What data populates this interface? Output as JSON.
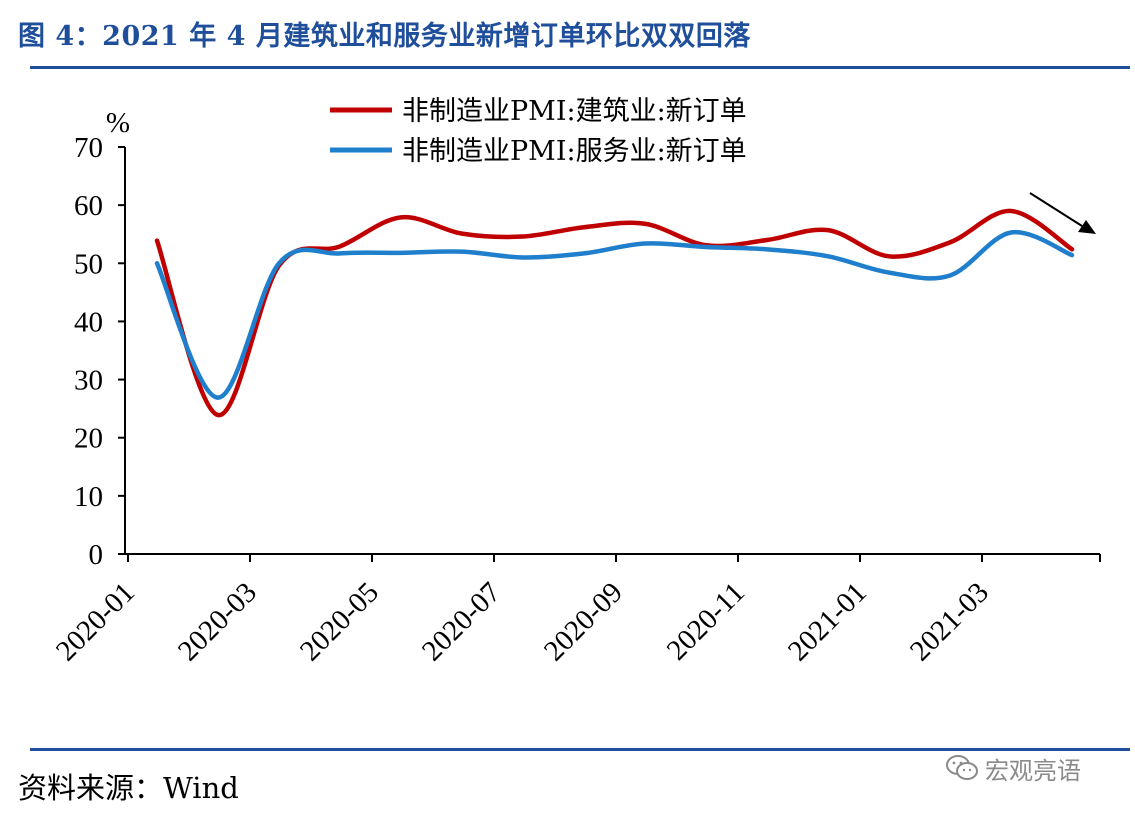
{
  "header": {
    "title": "图 4：2021 年 4 月建筑业和服务业新增订单环比双双回落"
  },
  "footer": {
    "source": "资料来源：Wind",
    "watermark_text": "宏观亮语",
    "watermark_icon": "wechat-icon"
  },
  "colors": {
    "accent": "#1f4e9a",
    "series_construction": "#c00000",
    "series_services": "#1f7fcc"
  },
  "chart_data": {
    "type": "line",
    "ylabel": "%",
    "ylim": [
      0,
      70
    ],
    "yticks": [
      "0",
      "10",
      "20",
      "30",
      "40",
      "50",
      "60",
      "70"
    ],
    "xlabels": [
      "2020-01",
      "2020-03",
      "2020-05",
      "2020-07",
      "2020-09",
      "2020-11",
      "2021-01",
      "2021-03"
    ],
    "x": [
      "2020-01",
      "2020-02",
      "2020-03",
      "2020-04",
      "2020-05",
      "2020-06",
      "2020-07",
      "2020-08",
      "2020-09",
      "2020-10",
      "2020-11",
      "2020-12",
      "2021-01",
      "2021-02",
      "2021-03",
      "2021-04"
    ],
    "series": [
      {
        "name": "非制造业PMI:建筑业:新订单",
        "values": [
          53.9,
          23.9,
          49.6,
          52.9,
          57.9,
          55.1,
          54.6,
          56.2,
          56.8,
          53.1,
          54.0,
          55.7,
          51.2,
          53.6,
          59.0,
          52.4
        ]
      },
      {
        "name": "非制造业PMI:服务业:新订单",
        "values": [
          50.0,
          26.9,
          50.0,
          51.7,
          51.8,
          52.0,
          51.0,
          51.7,
          53.4,
          52.8,
          52.4,
          51.2,
          48.4,
          47.9,
          55.3,
          51.4
        ]
      }
    ],
    "legend_position": "top-center",
    "annotation": "downward-arrow-top-right",
    "grid": false
  }
}
